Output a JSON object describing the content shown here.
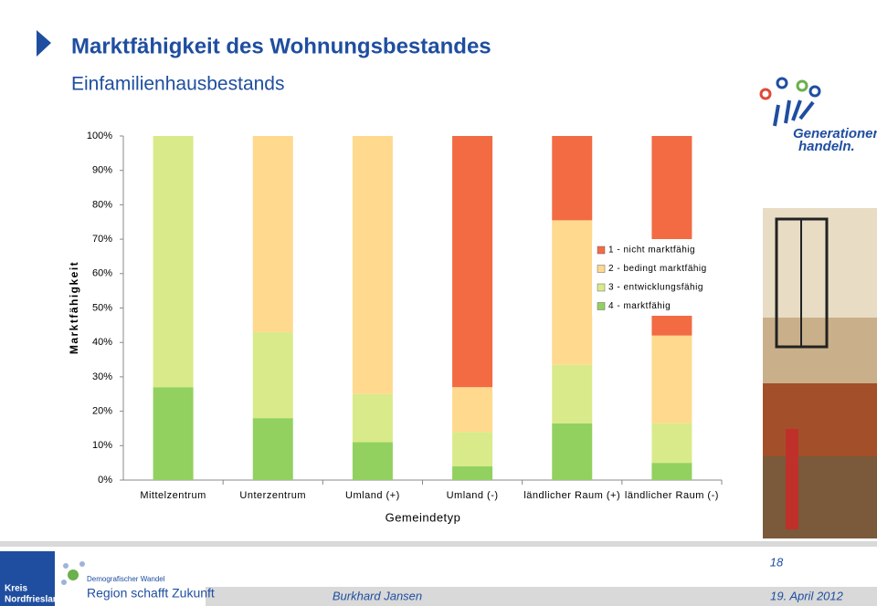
{
  "chart_data": {
    "type": "stacked_bar",
    "x_label": "Gemeindetyp",
    "y_label": "Marktfähigkeit",
    "categories": [
      "Mittelzentrum",
      "Unterzentrum",
      "Umland (+)",
      "Umland (-)",
      "ländlicher Raum (+)",
      "ländlicher Raum (-)"
    ],
    "series": [
      {
        "name": "1 - nicht marktfähig",
        "color": "#f26b43",
        "values": [
          0,
          0,
          0,
          73,
          24.5,
          58
        ]
      },
      {
        "name": "2 - bedingt marktfähig",
        "color": "#fed98e",
        "values": [
          0,
          57,
          75,
          13,
          42,
          25.5
        ]
      },
      {
        "name": "3 - entwicklungsfähig",
        "color": "#d9ea8a",
        "values": [
          73,
          25,
          14,
          10,
          17,
          11.5
        ]
      },
      {
        "name": "4 - marktfähig",
        "color": "#92d160",
        "values": [
          27,
          18,
          11,
          4,
          16.5,
          5
        ]
      }
    ],
    "ylim": [
      0,
      100
    ],
    "yticks": [
      {
        "value": 0,
        "label": "0%"
      },
      {
        "value": 10,
        "label": "10%"
      },
      {
        "value": 20,
        "label": "20%"
      },
      {
        "value": 30,
        "label": "30%"
      },
      {
        "value": 40,
        "label": "40%"
      },
      {
        "value": 50,
        "label": "50%"
      },
      {
        "value": 60,
        "label": "60%"
      },
      {
        "value": 70,
        "label": "70%"
      },
      {
        "value": 80,
        "label": "80%"
      },
      {
        "value": 90,
        "label": "90%"
      },
      {
        "value": 100,
        "label": "100%"
      }
    ],
    "grid": false,
    "legend": "right"
  },
  "slide": {
    "title": "Marktfähigkeit des Wohnungsbestandes",
    "subtitle": "Einfamilienhausbestands",
    "logo_top": [
      "Generationen",
      "handeln."
    ],
    "logo_left": [
      "Kreis",
      "Nordfriesland"
    ],
    "logo_mid": [
      "Demografischer Wandel",
      "Region schafft Zukunft"
    ],
    "page": "18",
    "author": "Burkhard Jansen",
    "date": "19. April 2012"
  }
}
